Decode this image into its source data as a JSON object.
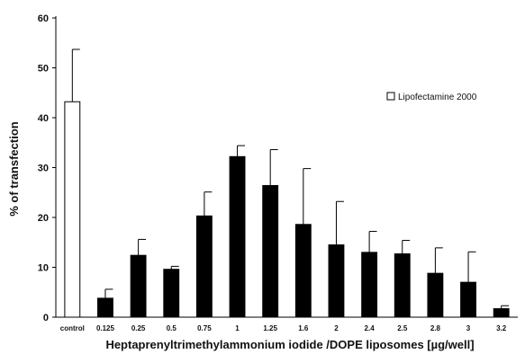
{
  "chart_data": {
    "type": "bar",
    "title": "",
    "xlabel": "Heptaprenyltrimethylammonium iodide /DOPE liposomes  [µg/well]",
    "ylabel": "% of transfection",
    "ylim": [
      0,
      60
    ],
    "yticks": [
      0,
      10,
      20,
      30,
      40,
      50,
      60
    ],
    "grid": false,
    "legend_position": "right",
    "categories": [
      "control",
      "0.125",
      "0.25",
      "0.5",
      "0.75",
      "1",
      "1.25",
      "1.6",
      "2",
      "2.4",
      "2.5",
      "2.8",
      "3",
      "3.2"
    ],
    "series": [
      {
        "name": "",
        "color": "#000000",
        "values": [
          null,
          3.8,
          12.4,
          9.6,
          20.3,
          32.2,
          26.4,
          18.6,
          14.5,
          13.0,
          12.7,
          8.8,
          7.0,
          1.7
        ],
        "error": [
          null,
          1.8,
          3.2,
          0.6,
          4.8,
          2.2,
          7.2,
          11.2,
          8.7,
          4.2,
          2.7,
          5.1,
          6.1,
          0.6
        ]
      },
      {
        "name": "Lipofectamine 2000",
        "color": "#ffffff",
        "values": [
          43.2,
          null,
          null,
          null,
          null,
          null,
          null,
          null,
          null,
          null,
          null,
          null,
          null,
          null
        ],
        "error": [
          10.5,
          null,
          null,
          null,
          null,
          null,
          null,
          null,
          null,
          null,
          null,
          null,
          null,
          null
        ]
      }
    ]
  }
}
